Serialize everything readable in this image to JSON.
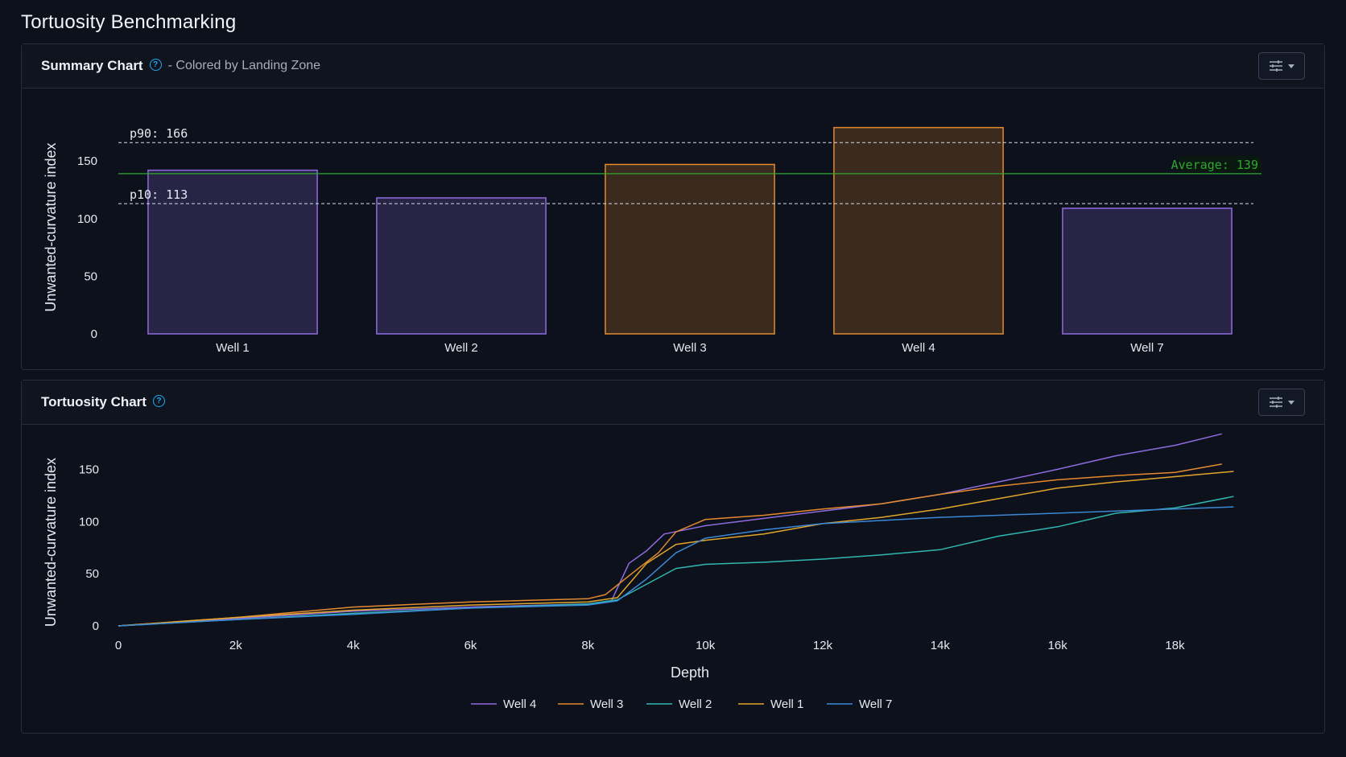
{
  "page": {
    "title": "Tortuosity Benchmarking"
  },
  "summary_panel": {
    "title": "Summary Chart",
    "subtitle": "- Colored by Landing Zone",
    "help_icon": "help-circle-icon",
    "settings_icon": "sliders-icon"
  },
  "tortuosity_panel": {
    "title": "Tortuosity Chart",
    "help_icon": "help-circle-icon",
    "settings_icon": "sliders-icon"
  },
  "colors": {
    "purple": "#8f6be0",
    "orange": "#e58a2e",
    "teal": "#2fb7b0",
    "gold": "#e3a62b",
    "blue": "#3d88d6",
    "average": "#2fa82f"
  },
  "chart_data": [
    {
      "type": "bar",
      "ylabel": "Unwanted-curvature index",
      "categories": [
        "Well 1",
        "Well 2",
        "Well 3",
        "Well 4",
        "Well 7"
      ],
      "values": [
        142,
        118,
        147,
        179,
        109
      ],
      "bar_colors": [
        "purple",
        "purple",
        "orange",
        "orange",
        "purple"
      ],
      "yticks": [
        0,
        50,
        100,
        150
      ],
      "ylim": [
        0,
        185
      ],
      "reference_lines": [
        {
          "label": "p90: 166",
          "value": 166,
          "style": "dashed"
        },
        {
          "label": "p10: 113",
          "value": 113,
          "style": "dashed"
        },
        {
          "label": "Average: 139",
          "value": 139,
          "style": "solid"
        }
      ]
    },
    {
      "type": "line",
      "xlabel": "Depth",
      "ylabel": "Unwanted-curvature index",
      "xticks": [
        0,
        2000,
        4000,
        6000,
        8000,
        10000,
        12000,
        14000,
        16000,
        18000
      ],
      "xtick_labels": [
        "0",
        "2k",
        "4k",
        "6k",
        "8k",
        "10k",
        "12k",
        "14k",
        "16k",
        "18k"
      ],
      "yticks": [
        0,
        50,
        100,
        150
      ],
      "ylim": [
        0,
        185
      ],
      "legend_position": "bottom",
      "series": [
        {
          "name": "Well 4",
          "color": "purple",
          "points": [
            [
              0,
              0
            ],
            [
              2000,
              7
            ],
            [
              4000,
              14
            ],
            [
              6000,
              18
            ],
            [
              8000,
              21
            ],
            [
              8400,
              24
            ],
            [
              8700,
              60
            ],
            [
              9000,
              72
            ],
            [
              9300,
              88
            ],
            [
              10000,
              96
            ],
            [
              11000,
              103
            ],
            [
              12000,
              110
            ],
            [
              13000,
              117
            ],
            [
              14000,
              126
            ],
            [
              15000,
              138
            ],
            [
              16000,
              150
            ],
            [
              17000,
              163
            ],
            [
              18000,
              173
            ],
            [
              18800,
              184
            ]
          ]
        },
        {
          "name": "Well 3",
          "color": "orange",
          "points": [
            [
              0,
              0
            ],
            [
              2000,
              8
            ],
            [
              4000,
              18
            ],
            [
              6000,
              23
            ],
            [
              8000,
              26
            ],
            [
              8300,
              30
            ],
            [
              8700,
              48
            ],
            [
              9200,
              70
            ],
            [
              9500,
              90
            ],
            [
              10000,
              102
            ],
            [
              11000,
              106
            ],
            [
              12000,
              112
            ],
            [
              13000,
              117
            ],
            [
              14000,
              126
            ],
            [
              15000,
              134
            ],
            [
              16000,
              140
            ],
            [
              17000,
              144
            ],
            [
              18000,
              147
            ],
            [
              18800,
              155
            ]
          ]
        },
        {
          "name": "Well 2",
          "color": "teal",
          "points": [
            [
              0,
              0
            ],
            [
              2000,
              6
            ],
            [
              4000,
              12
            ],
            [
              6000,
              17
            ],
            [
              8000,
              21
            ],
            [
              8500,
              25
            ],
            [
              9000,
              40
            ],
            [
              9500,
              55
            ],
            [
              10000,
              59
            ],
            [
              11000,
              61
            ],
            [
              12000,
              64
            ],
            [
              13000,
              68
            ],
            [
              14000,
              73
            ],
            [
              15000,
              86
            ],
            [
              16000,
              95
            ],
            [
              17000,
              108
            ],
            [
              18000,
              113
            ],
            [
              19000,
              124
            ]
          ]
        },
        {
          "name": "Well 1",
          "color": "gold",
          "points": [
            [
              0,
              0
            ],
            [
              2000,
              8
            ],
            [
              4000,
              15
            ],
            [
              6000,
              20
            ],
            [
              8000,
              23
            ],
            [
              8500,
              27
            ],
            [
              9000,
              60
            ],
            [
              9500,
              78
            ],
            [
              10000,
              82
            ],
            [
              11000,
              88
            ],
            [
              12000,
              98
            ],
            [
              13000,
              104
            ],
            [
              14000,
              112
            ],
            [
              15000,
              122
            ],
            [
              16000,
              132
            ],
            [
              17000,
              138
            ],
            [
              18000,
              143
            ],
            [
              19000,
              148
            ]
          ]
        },
        {
          "name": "Well 7",
          "color": "blue",
          "points": [
            [
              0,
              0
            ],
            [
              2000,
              6
            ],
            [
              4000,
              11
            ],
            [
              6000,
              17
            ],
            [
              8000,
              20
            ],
            [
              8500,
              24
            ],
            [
              9000,
              45
            ],
            [
              9500,
              70
            ],
            [
              10000,
              84
            ],
            [
              11000,
              92
            ],
            [
              12000,
              98
            ],
            [
              13000,
              101
            ],
            [
              14000,
              104
            ],
            [
              15000,
              106
            ],
            [
              16000,
              108
            ],
            [
              17000,
              110
            ],
            [
              18000,
              112
            ],
            [
              19000,
              114
            ]
          ]
        }
      ]
    }
  ]
}
